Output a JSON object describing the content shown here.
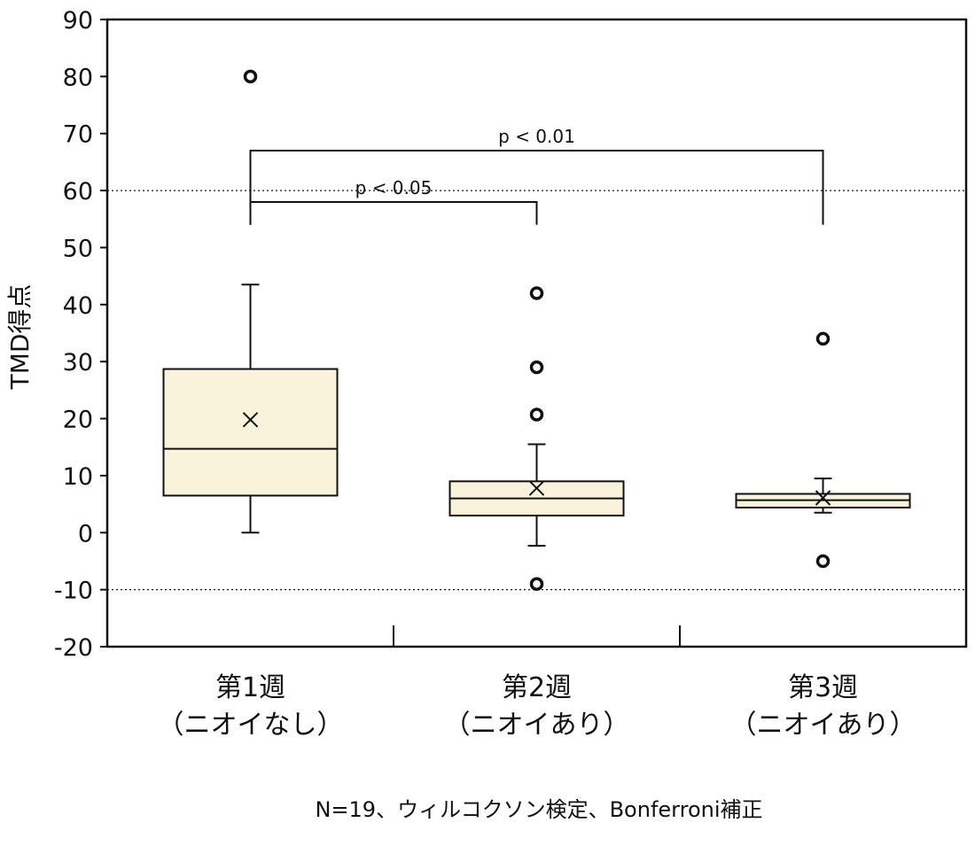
{
  "chart_data": {
    "type": "box",
    "ylabel": "TMD得点",
    "ylim": [
      -20,
      90
    ],
    "yticks": [
      90,
      80,
      70,
      60,
      50,
      40,
      30,
      20,
      10,
      0,
      -10,
      -20
    ],
    "reference_lines": [
      60,
      -10
    ],
    "categories": [
      {
        "line1": "第1週",
        "line2": "（ニオイなし）"
      },
      {
        "line1": "第2週",
        "line2": "（ニオイあり）"
      },
      {
        "line1": "第3週",
        "line2": "（ニオイあり）"
      }
    ],
    "boxes": [
      {
        "whisker_low": 0,
        "q1": 6.5,
        "median": 14.7,
        "q3": 28.7,
        "whisker_high": 43.5,
        "mean": 19.8,
        "outliers": [
          80
        ]
      },
      {
        "whisker_low": -2.3,
        "q1": 3.0,
        "median": 6.0,
        "q3": 9.0,
        "whisker_high": 15.5,
        "mean": 7.8,
        "outliers": [
          42,
          29,
          20.7,
          -9
        ]
      },
      {
        "whisker_low": 3.5,
        "q1": 4.4,
        "median": 5.7,
        "q3": 6.8,
        "whisker_high": 9.5,
        "mean": 6.1,
        "outliers": [
          34,
          -5
        ]
      }
    ],
    "significance": [
      {
        "from": 0,
        "to": 1,
        "label": "p < 0.05",
        "y": 58,
        "drop_to": 54
      },
      {
        "from": 0,
        "to": 2,
        "label": "p < 0.01",
        "y": 67,
        "drop_to": 54
      }
    ],
    "colors": {
      "box_fill": "#faf3dc",
      "stroke": "#111111",
      "grid": "#111111"
    }
  },
  "footnote": "N=19、ウィルコクソン検定、Bonferroni補正"
}
